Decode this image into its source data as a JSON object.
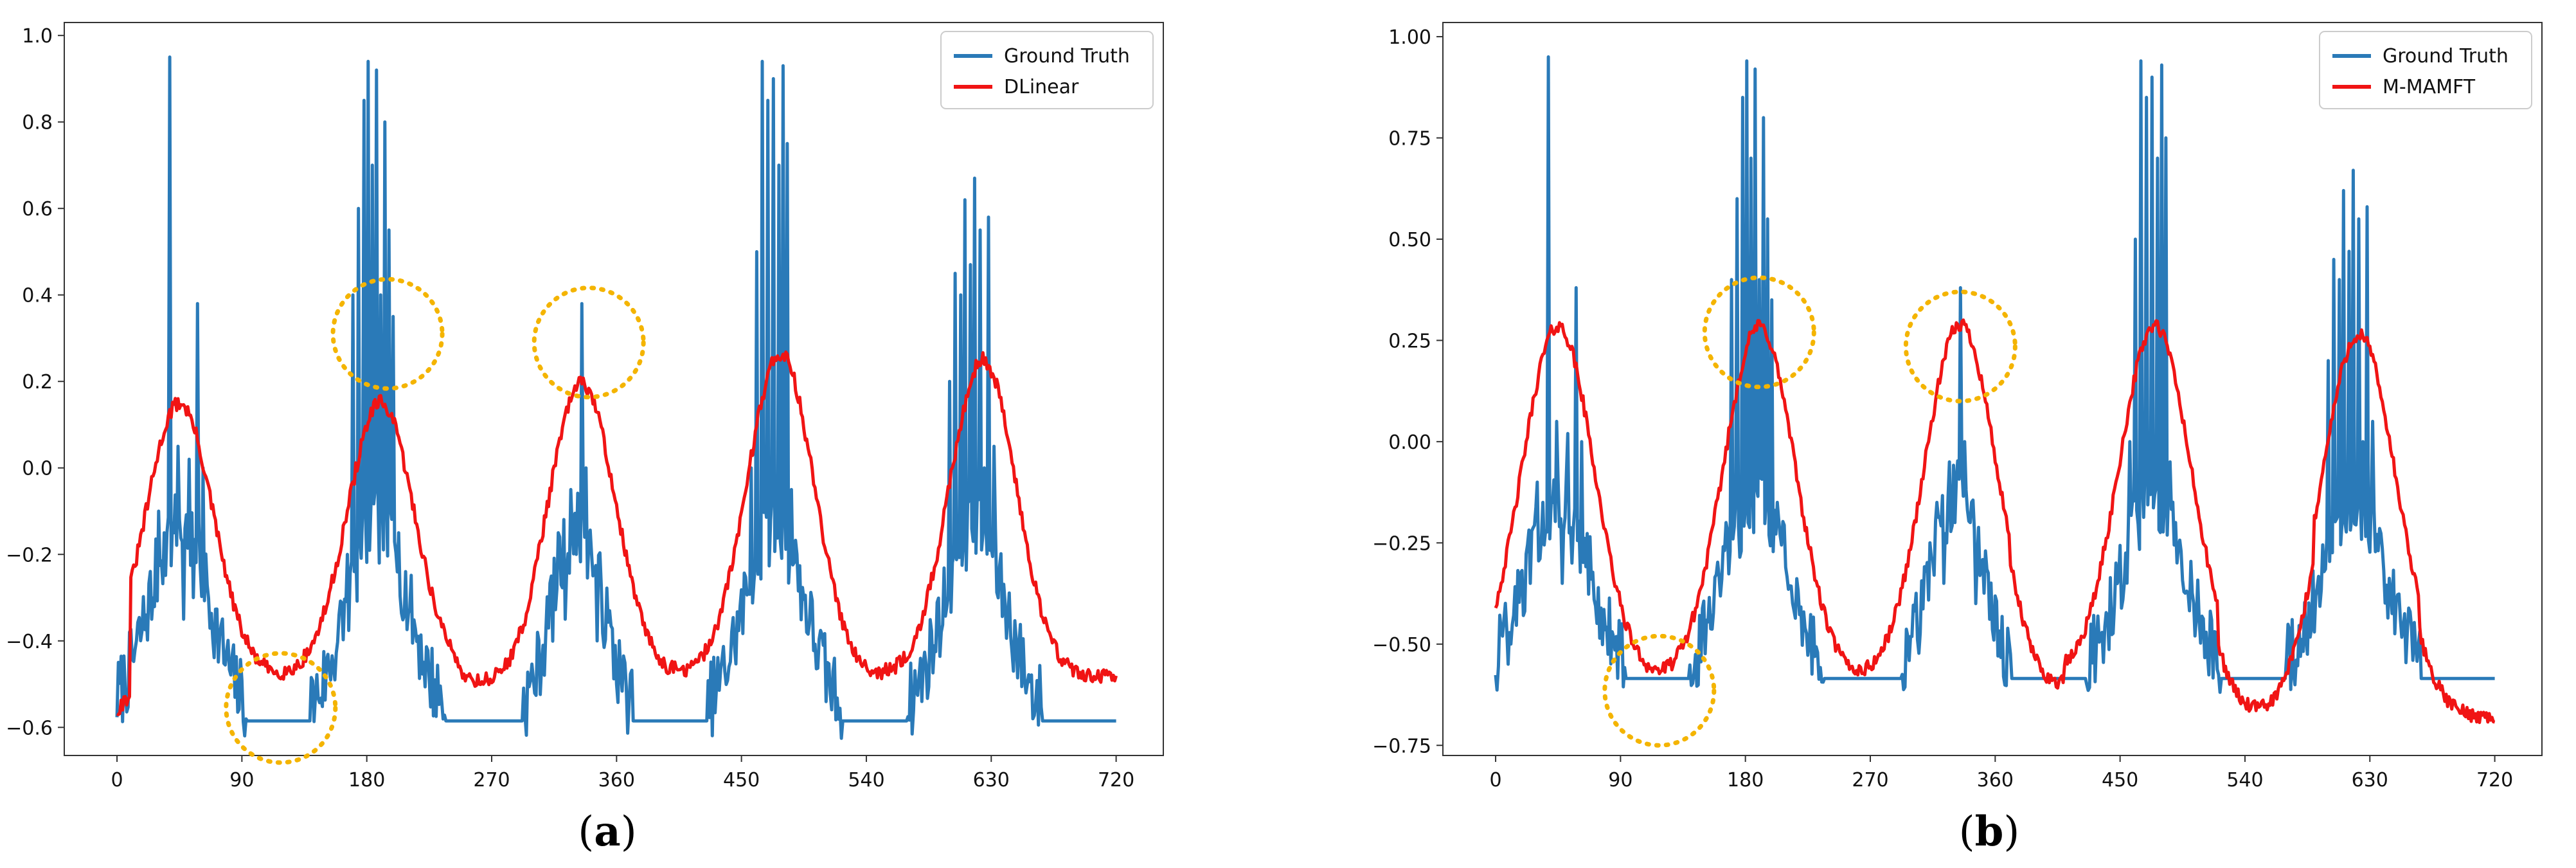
{
  "chart_data": [
    {
      "id": "a",
      "type": "line",
      "caption_letter": "a",
      "caption_open": "(",
      "caption_close": ")",
      "xticks": [
        "0",
        "90",
        "180",
        "270",
        "360",
        "450",
        "540",
        "630",
        "720"
      ],
      "xtick_values": [
        0,
        90,
        180,
        270,
        360,
        450,
        540,
        630,
        720
      ],
      "yticks": [
        "−0.6",
        "−0.4",
        "−0.2",
        "0.0",
        "0.2",
        "0.4",
        "0.6",
        "0.8",
        "1.0"
      ],
      "ytick_values": [
        -0.6,
        -0.4,
        -0.2,
        0.0,
        0.2,
        0.4,
        0.6,
        0.8,
        1.0
      ],
      "xlim": [
        -38,
        754
      ],
      "ylim": [
        -0.665,
        1.03
      ],
      "legend_position": "top-right",
      "series": [
        {
          "name": "Ground Truth",
          "color": "#2a7ab8"
        },
        {
          "name": "DLinear",
          "color": "#f01414"
        }
      ],
      "gt_baseline": -0.585,
      "pred_baseline": -0.485,
      "pred_peaks": [
        {
          "center": 45,
          "height": 0.15,
          "width": 24
        },
        {
          "center": 190,
          "height": 0.15,
          "width": 24
        },
        {
          "center": 335,
          "height": 0.195,
          "width": 24
        },
        {
          "center": 478,
          "height": 0.265,
          "width": 24
        },
        {
          "center": 624,
          "height": 0.25,
          "width": 24
        }
      ],
      "gt_spikes": [
        [
          25,
          -0.35
        ],
        [
          30,
          -0.1
        ],
        [
          34,
          -0.15
        ],
        [
          38,
          0.95
        ],
        [
          41,
          -0.15
        ],
        [
          44,
          0.05
        ],
        [
          48,
          -0.35
        ],
        [
          52,
          0.02
        ],
        [
          55,
          -0.3
        ],
        [
          58,
          0.38
        ],
        [
          62,
          0.0
        ],
        [
          166,
          -0.2
        ],
        [
          170,
          0.4
        ],
        [
          174,
          0.6
        ],
        [
          178,
          0.85
        ],
        [
          181,
          0.94
        ],
        [
          184,
          0.7
        ],
        [
          187,
          0.92
        ],
        [
          190,
          0.4
        ],
        [
          193,
          0.8
        ],
        [
          196,
          0.55
        ],
        [
          199,
          0.35
        ],
        [
          203,
          -0.15
        ],
        [
          313,
          -0.25
        ],
        [
          318,
          -0.15
        ],
        [
          323,
          -0.35
        ],
        [
          327,
          -0.05
        ],
        [
          331,
          -0.2
        ],
        [
          335,
          0.38
        ],
        [
          338,
          0.0
        ],
        [
          342,
          -0.2
        ],
        [
          346,
          -0.4
        ],
        [
          457,
          0.0
        ],
        [
          461,
          0.5
        ],
        [
          465,
          0.94
        ],
        [
          469,
          0.85
        ],
        [
          473,
          0.9
        ],
        [
          477,
          0.7
        ],
        [
          480,
          0.93
        ],
        [
          483,
          0.75
        ],
        [
          486,
          -0.05
        ],
        [
          490,
          -0.2
        ],
        [
          600,
          0.2
        ],
        [
          604,
          0.45
        ],
        [
          608,
          0.4
        ],
        [
          611,
          0.62
        ],
        [
          615,
          0.47
        ],
        [
          618,
          0.67
        ],
        [
          622,
          0.55
        ],
        [
          625,
          0.0
        ],
        [
          628,
          0.58
        ],
        [
          632,
          0.05
        ]
      ],
      "circles": [
        {
          "x": 118,
          "y": -0.555
        },
        {
          "x": 195,
          "y": 0.31
        },
        {
          "x": 340,
          "y": 0.29
        }
      ]
    },
    {
      "id": "b",
      "type": "line",
      "caption_letter": "b",
      "caption_open": "(",
      "caption_close": ")",
      "xticks": [
        "0",
        "90",
        "180",
        "270",
        "360",
        "450",
        "540",
        "630",
        "720"
      ],
      "xtick_values": [
        0,
        90,
        180,
        270,
        360,
        450,
        540,
        630,
        720
      ],
      "yticks": [
        "−0.75",
        "−0.50",
        "−0.25",
        "0.00",
        "0.25",
        "0.50",
        "0.75",
        "1.00"
      ],
      "ytick_values": [
        -0.75,
        -0.5,
        -0.25,
        0.0,
        0.25,
        0.5,
        0.75,
        1.0
      ],
      "xlim": [
        -38,
        754
      ],
      "ylim": [
        -0.775,
        1.035
      ],
      "legend_position": "top-right",
      "series": [
        {
          "name": "Ground Truth",
          "color": "#2a7ab8"
        },
        {
          "name": "M-MAMFT",
          "color": "#f01414"
        }
      ],
      "gt_baseline": -0.585,
      "pred_baseline": -0.6,
      "pred_peaks": [
        {
          "center": 45,
          "height": 0.285,
          "width": 26
        },
        {
          "center": 190,
          "height": 0.285,
          "width": 26
        },
        {
          "center": 335,
          "height": 0.29,
          "width": 26
        },
        {
          "center": 475,
          "height": 0.285,
          "width": 26
        },
        {
          "center": 622,
          "height": 0.265,
          "width": 26
        }
      ],
      "gt_spikes": [
        [
          25,
          -0.35
        ],
        [
          30,
          -0.1
        ],
        [
          34,
          -0.15
        ],
        [
          38,
          0.95
        ],
        [
          41,
          -0.15
        ],
        [
          44,
          0.05
        ],
        [
          48,
          -0.35
        ],
        [
          52,
          0.02
        ],
        [
          55,
          -0.3
        ],
        [
          58,
          0.38
        ],
        [
          62,
          0.0
        ],
        [
          166,
          -0.2
        ],
        [
          170,
          0.4
        ],
        [
          174,
          0.6
        ],
        [
          178,
          0.85
        ],
        [
          181,
          0.94
        ],
        [
          184,
          0.7
        ],
        [
          187,
          0.92
        ],
        [
          190,
          0.4
        ],
        [
          193,
          0.8
        ],
        [
          196,
          0.55
        ],
        [
          199,
          0.35
        ],
        [
          203,
          -0.15
        ],
        [
          313,
          -0.25
        ],
        [
          318,
          -0.15
        ],
        [
          323,
          -0.35
        ],
        [
          327,
          -0.05
        ],
        [
          331,
          -0.2
        ],
        [
          335,
          0.38
        ],
        [
          338,
          0.0
        ],
        [
          342,
          -0.2
        ],
        [
          346,
          -0.4
        ],
        [
          457,
          0.0
        ],
        [
          461,
          0.5
        ],
        [
          465,
          0.94
        ],
        [
          469,
          0.85
        ],
        [
          473,
          0.9
        ],
        [
          477,
          0.7
        ],
        [
          480,
          0.93
        ],
        [
          483,
          0.75
        ],
        [
          486,
          -0.05
        ],
        [
          490,
          -0.2
        ],
        [
          600,
          0.2
        ],
        [
          604,
          0.45
        ],
        [
          608,
          0.4
        ],
        [
          611,
          0.62
        ],
        [
          615,
          0.47
        ],
        [
          618,
          0.67
        ],
        [
          622,
          0.55
        ],
        [
          625,
          0.0
        ],
        [
          628,
          0.58
        ],
        [
          632,
          0.05
        ]
      ],
      "circles": [
        {
          "x": 118,
          "y": -0.615
        },
        {
          "x": 190,
          "y": 0.27
        },
        {
          "x": 335,
          "y": 0.235
        }
      ]
    }
  ]
}
